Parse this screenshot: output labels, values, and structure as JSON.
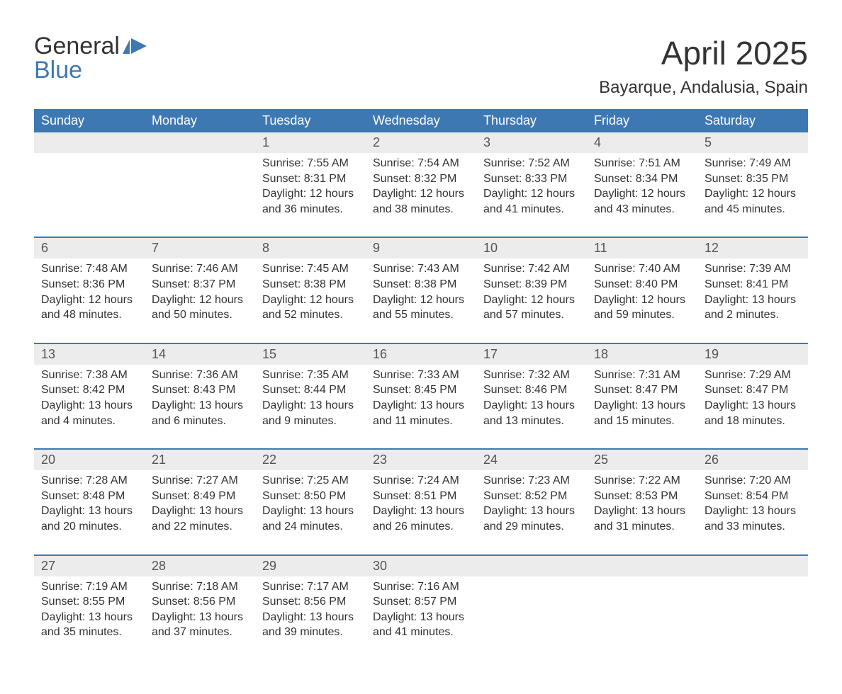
{
  "logo": {
    "line1": "General",
    "line2": "Blue",
    "icon_color": "#3e78b3",
    "text_color": "#333333"
  },
  "title": {
    "month": "April 2025",
    "location": "Bayarque, Andalusia, Spain",
    "title_fontsize": 46,
    "location_fontsize": 24,
    "title_color": "#333333"
  },
  "colors": {
    "header_bg": "#3e78b3",
    "header_text": "#ffffff",
    "daynum_bg": "#ececec",
    "daynum_text": "#555555",
    "body_text": "#333333",
    "separator": "#3e78b3",
    "page_bg": "#ffffff"
  },
  "weekdays": [
    "Sunday",
    "Monday",
    "Tuesday",
    "Wednesday",
    "Thursday",
    "Friday",
    "Saturday"
  ],
  "weeks": [
    {
      "days": [
        {
          "num": "",
          "sunrise": "",
          "sunset": "",
          "daylight": ""
        },
        {
          "num": "",
          "sunrise": "",
          "sunset": "",
          "daylight": ""
        },
        {
          "num": "1",
          "sunrise": "Sunrise: 7:55 AM",
          "sunset": "Sunset: 8:31 PM",
          "daylight": "Daylight: 12 hours and 36 minutes."
        },
        {
          "num": "2",
          "sunrise": "Sunrise: 7:54 AM",
          "sunset": "Sunset: 8:32 PM",
          "daylight": "Daylight: 12 hours and 38 minutes."
        },
        {
          "num": "3",
          "sunrise": "Sunrise: 7:52 AM",
          "sunset": "Sunset: 8:33 PM",
          "daylight": "Daylight: 12 hours and 41 minutes."
        },
        {
          "num": "4",
          "sunrise": "Sunrise: 7:51 AM",
          "sunset": "Sunset: 8:34 PM",
          "daylight": "Daylight: 12 hours and 43 minutes."
        },
        {
          "num": "5",
          "sunrise": "Sunrise: 7:49 AM",
          "sunset": "Sunset: 8:35 PM",
          "daylight": "Daylight: 12 hours and 45 minutes."
        }
      ]
    },
    {
      "days": [
        {
          "num": "6",
          "sunrise": "Sunrise: 7:48 AM",
          "sunset": "Sunset: 8:36 PM",
          "daylight": "Daylight: 12 hours and 48 minutes."
        },
        {
          "num": "7",
          "sunrise": "Sunrise: 7:46 AM",
          "sunset": "Sunset: 8:37 PM",
          "daylight": "Daylight: 12 hours and 50 minutes."
        },
        {
          "num": "8",
          "sunrise": "Sunrise: 7:45 AM",
          "sunset": "Sunset: 8:38 PM",
          "daylight": "Daylight: 12 hours and 52 minutes."
        },
        {
          "num": "9",
          "sunrise": "Sunrise: 7:43 AM",
          "sunset": "Sunset: 8:38 PM",
          "daylight": "Daylight: 12 hours and 55 minutes."
        },
        {
          "num": "10",
          "sunrise": "Sunrise: 7:42 AM",
          "sunset": "Sunset: 8:39 PM",
          "daylight": "Daylight: 12 hours and 57 minutes."
        },
        {
          "num": "11",
          "sunrise": "Sunrise: 7:40 AM",
          "sunset": "Sunset: 8:40 PM",
          "daylight": "Daylight: 12 hours and 59 minutes."
        },
        {
          "num": "12",
          "sunrise": "Sunrise: 7:39 AM",
          "sunset": "Sunset: 8:41 PM",
          "daylight": "Daylight: 13 hours and 2 minutes."
        }
      ]
    },
    {
      "days": [
        {
          "num": "13",
          "sunrise": "Sunrise: 7:38 AM",
          "sunset": "Sunset: 8:42 PM",
          "daylight": "Daylight: 13 hours and 4 minutes."
        },
        {
          "num": "14",
          "sunrise": "Sunrise: 7:36 AM",
          "sunset": "Sunset: 8:43 PM",
          "daylight": "Daylight: 13 hours and 6 minutes."
        },
        {
          "num": "15",
          "sunrise": "Sunrise: 7:35 AM",
          "sunset": "Sunset: 8:44 PM",
          "daylight": "Daylight: 13 hours and 9 minutes."
        },
        {
          "num": "16",
          "sunrise": "Sunrise: 7:33 AM",
          "sunset": "Sunset: 8:45 PM",
          "daylight": "Daylight: 13 hours and 11 minutes."
        },
        {
          "num": "17",
          "sunrise": "Sunrise: 7:32 AM",
          "sunset": "Sunset: 8:46 PM",
          "daylight": "Daylight: 13 hours and 13 minutes."
        },
        {
          "num": "18",
          "sunrise": "Sunrise: 7:31 AM",
          "sunset": "Sunset: 8:47 PM",
          "daylight": "Daylight: 13 hours and 15 minutes."
        },
        {
          "num": "19",
          "sunrise": "Sunrise: 7:29 AM",
          "sunset": "Sunset: 8:47 PM",
          "daylight": "Daylight: 13 hours and 18 minutes."
        }
      ]
    },
    {
      "days": [
        {
          "num": "20",
          "sunrise": "Sunrise: 7:28 AM",
          "sunset": "Sunset: 8:48 PM",
          "daylight": "Daylight: 13 hours and 20 minutes."
        },
        {
          "num": "21",
          "sunrise": "Sunrise: 7:27 AM",
          "sunset": "Sunset: 8:49 PM",
          "daylight": "Daylight: 13 hours and 22 minutes."
        },
        {
          "num": "22",
          "sunrise": "Sunrise: 7:25 AM",
          "sunset": "Sunset: 8:50 PM",
          "daylight": "Daylight: 13 hours and 24 minutes."
        },
        {
          "num": "23",
          "sunrise": "Sunrise: 7:24 AM",
          "sunset": "Sunset: 8:51 PM",
          "daylight": "Daylight: 13 hours and 26 minutes."
        },
        {
          "num": "24",
          "sunrise": "Sunrise: 7:23 AM",
          "sunset": "Sunset: 8:52 PM",
          "daylight": "Daylight: 13 hours and 29 minutes."
        },
        {
          "num": "25",
          "sunrise": "Sunrise: 7:22 AM",
          "sunset": "Sunset: 8:53 PM",
          "daylight": "Daylight: 13 hours and 31 minutes."
        },
        {
          "num": "26",
          "sunrise": "Sunrise: 7:20 AM",
          "sunset": "Sunset: 8:54 PM",
          "daylight": "Daylight: 13 hours and 33 minutes."
        }
      ]
    },
    {
      "days": [
        {
          "num": "27",
          "sunrise": "Sunrise: 7:19 AM",
          "sunset": "Sunset: 8:55 PM",
          "daylight": "Daylight: 13 hours and 35 minutes."
        },
        {
          "num": "28",
          "sunrise": "Sunrise: 7:18 AM",
          "sunset": "Sunset: 8:56 PM",
          "daylight": "Daylight: 13 hours and 37 minutes."
        },
        {
          "num": "29",
          "sunrise": "Sunrise: 7:17 AM",
          "sunset": "Sunset: 8:56 PM",
          "daylight": "Daylight: 13 hours and 39 minutes."
        },
        {
          "num": "30",
          "sunrise": "Sunrise: 7:16 AM",
          "sunset": "Sunset: 8:57 PM",
          "daylight": "Daylight: 13 hours and 41 minutes."
        },
        {
          "num": "",
          "sunrise": "",
          "sunset": "",
          "daylight": ""
        },
        {
          "num": "",
          "sunrise": "",
          "sunset": "",
          "daylight": ""
        },
        {
          "num": "",
          "sunrise": "",
          "sunset": "",
          "daylight": ""
        }
      ]
    }
  ]
}
